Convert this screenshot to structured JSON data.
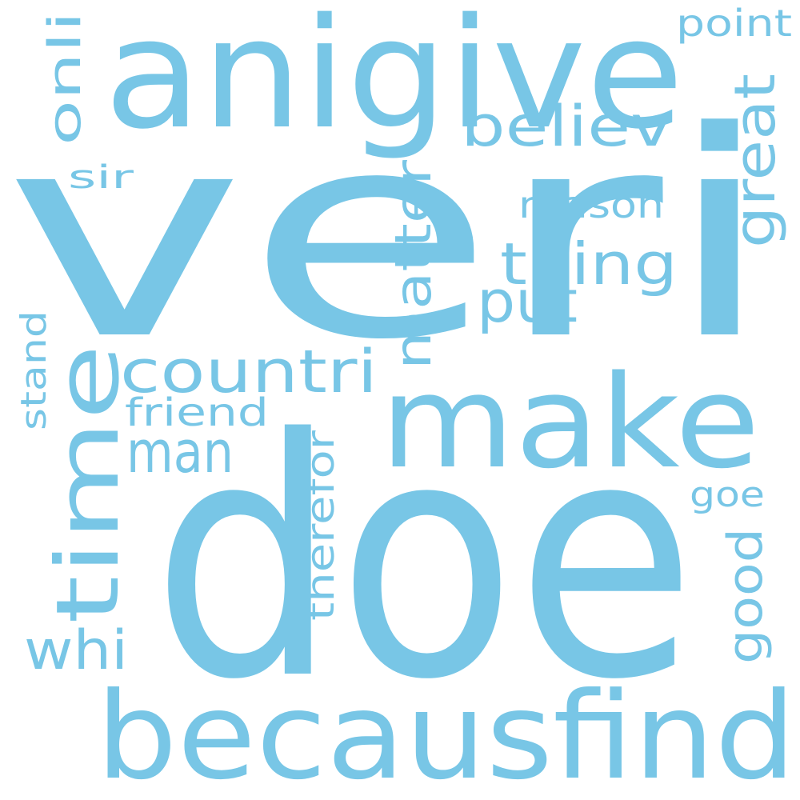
{
  "color": "#78c6e6",
  "background": "#ffffff",
  "words": {
    "veri": "veri",
    "doe": "doe",
    "anigive": "anigive",
    "becausfind": "becausfind",
    "make": "make",
    "time": "time",
    "countri": "countri",
    "matter": "matter",
    "thing": "thing",
    "believ": "believ",
    "great": "great",
    "man": "man",
    "put": "put",
    "whi": "whi",
    "reason": "reason",
    "friend": "friend",
    "onli": "onli",
    "point": "point",
    "sir": "sir",
    "stand": "stand",
    "therefor": "therefor",
    "good": "good",
    "goe": "goe"
  }
}
